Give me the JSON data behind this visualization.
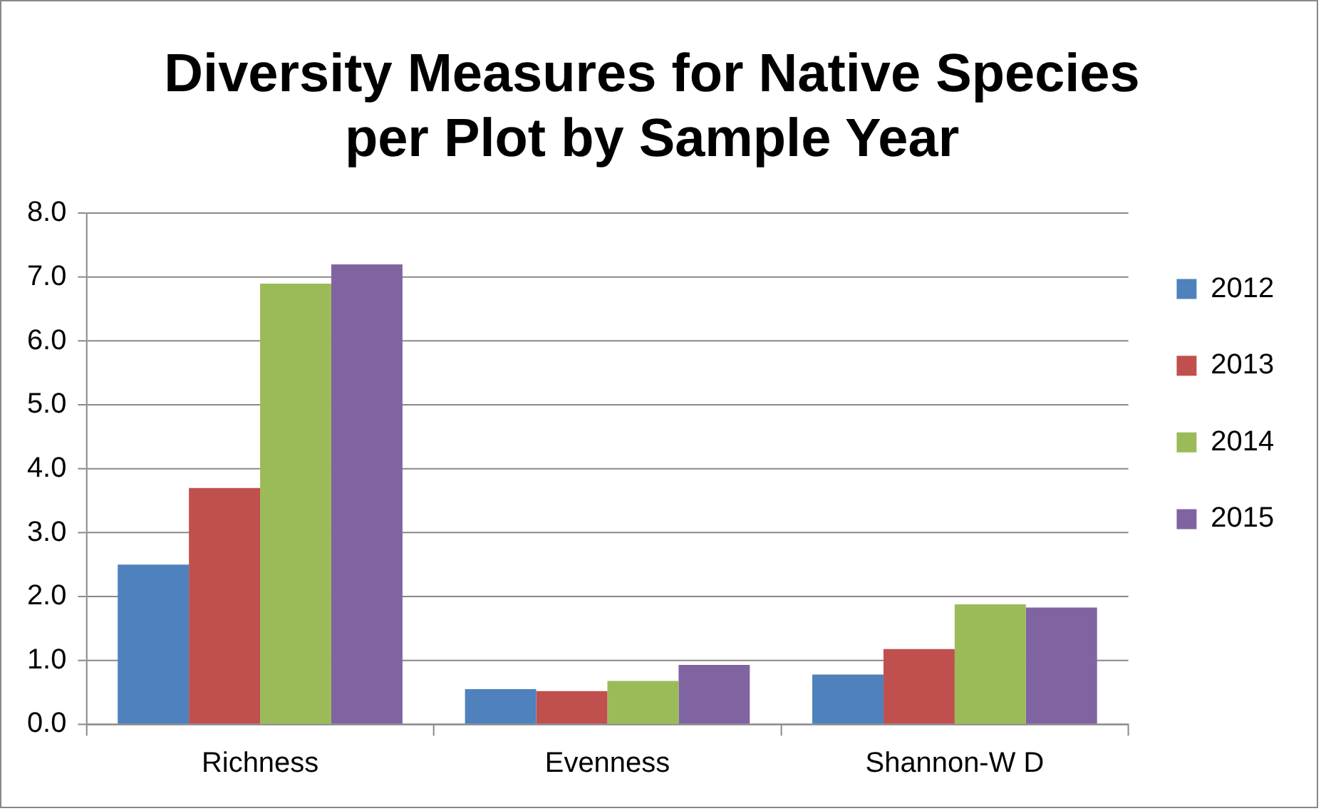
{
  "chart_data": {
    "type": "bar",
    "title": "Diversity Measures for Native Species per Plot by Sample Year",
    "categories": [
      "Richness",
      "Evenness",
      "Shannon-W D"
    ],
    "series": [
      {
        "name": "2012",
        "color": "#4f81bd",
        "values": [
          2.5,
          0.55,
          0.78
        ]
      },
      {
        "name": "2013",
        "color": "#c0504d",
        "values": [
          3.7,
          0.52,
          1.18
        ]
      },
      {
        "name": "2014",
        "color": "#9bbb59",
        "values": [
          6.9,
          0.68,
          1.88
        ]
      },
      {
        "name": "2015",
        "color": "#8064a2",
        "values": [
          7.2,
          0.93,
          1.83
        ]
      }
    ],
    "ylim": [
      0,
      8
    ],
    "yticks": [
      {
        "value": 0,
        "label": "0.0"
      },
      {
        "value": 1,
        "label": "1.0"
      },
      {
        "value": 2,
        "label": "2.0"
      },
      {
        "value": 3,
        "label": "3.0"
      },
      {
        "value": 4,
        "label": "4.0"
      },
      {
        "value": 5,
        "label": "5.0"
      },
      {
        "value": 6,
        "label": "6.0"
      },
      {
        "value": 7,
        "label": "7.0"
      },
      {
        "value": 8,
        "label": "8.0"
      }
    ],
    "grid": "y",
    "legend": "right"
  }
}
